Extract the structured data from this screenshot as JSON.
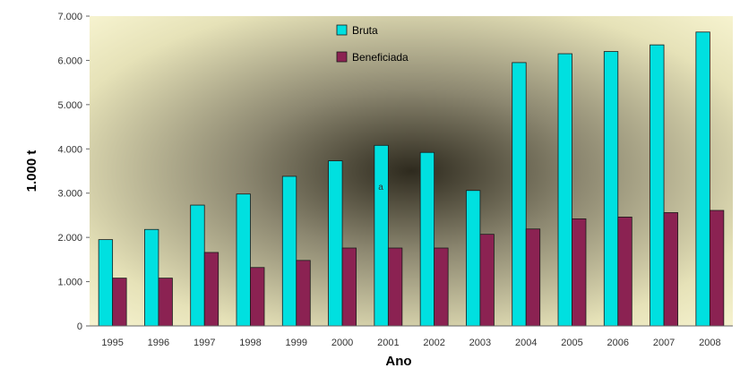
{
  "chart_data": {
    "type": "bar",
    "categories": [
      "1995",
      "1996",
      "1997",
      "1998",
      "1999",
      "2000",
      "2001",
      "2002",
      "2003",
      "2004",
      "2005",
      "2006",
      "2007",
      "2008"
    ],
    "series": [
      {
        "name": "Bruta",
        "color": "#00e0e0",
        "values": [
          1950,
          2180,
          2730,
          2980,
          3380,
          3730,
          4080,
          3920,
          3060,
          5950,
          6150,
          6200,
          6350,
          6640
        ]
      },
      {
        "name": "Beneficiada",
        "color": "#8b2252",
        "values": [
          1080,
          1080,
          1660,
          1320,
          1480,
          1760,
          1760,
          1760,
          2070,
          2190,
          2420,
          2460,
          2560,
          2610
        ]
      }
    ],
    "yticks": [
      "0",
      "1.000",
      "2.000",
      "3.000",
      "4.000",
      "5.000",
      "6.000",
      "7.000"
    ],
    "xlabel": "Ano",
    "ylabel": "1.000 t",
    "ylim": [
      0,
      7000
    ],
    "legend_position": "top-center",
    "annotation": "a"
  }
}
